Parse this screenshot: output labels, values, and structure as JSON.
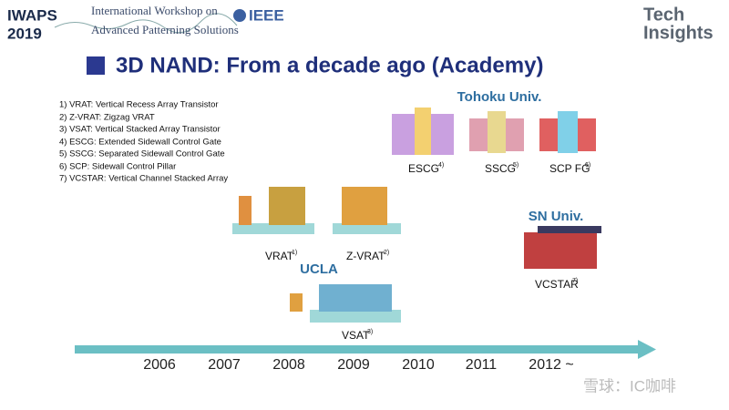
{
  "header": {
    "conference": "IWAPS",
    "year": "2019",
    "workshop_line1": "International Workshop on",
    "ieee": "IEEE",
    "workshop_line2": "Advanced Patterning Solutions",
    "logo_line1": "Tech",
    "logo_line2": "Insights"
  },
  "title": "3D NAND: From a decade ago (Academy)",
  "definitions": [
    "1) VRAT: Vertical Recess Array Transistor",
    "2) Z-VRAT: Zigzag VRAT",
    "3) VSAT: Vertical Stacked Array Transistor",
    "4) ESCG: Extended Sidewall Control Gate",
    "5) SSCG: Separated Sidewall Control Gate",
    "6) SCP: Sidewall Control Pillar",
    "7) VCSTAR: Vertical Channel Stacked Array"
  ],
  "groups": [
    "Tohoku Univ.",
    "SN Univ.",
    "UCLA"
  ],
  "devices": [
    {
      "label": "ESCG",
      "ref": "4)"
    },
    {
      "label": "SSCG",
      "ref": "5)"
    },
    {
      "label": "SCP FG",
      "ref": "6)"
    },
    {
      "label": "VCSTAR",
      "ref": "7)"
    },
    {
      "label": "VRAT",
      "ref": "1)"
    },
    {
      "label": "Z-VRAT",
      "ref": "2)"
    },
    {
      "label": "VSAT",
      "ref": "3)"
    }
  ],
  "timeline": [
    "2006",
    "2007",
    "2008",
    "2009",
    "2010",
    "2011",
    "2012 ~"
  ],
  "watermark": "雪球：IC咖啡"
}
